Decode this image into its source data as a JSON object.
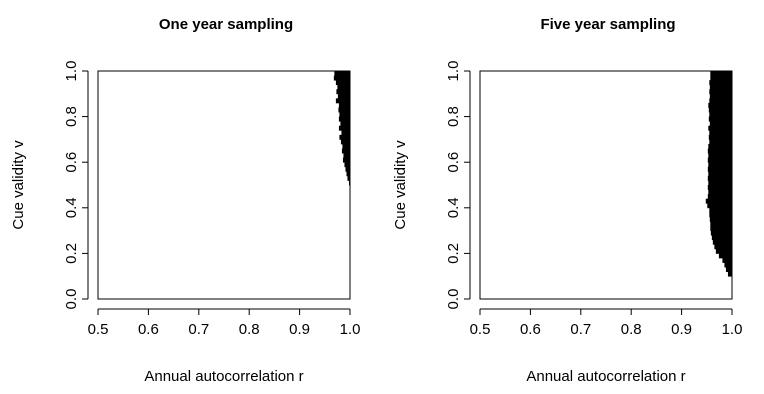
{
  "chart_data": [
    {
      "type": "area",
      "title": "One year sampling",
      "xlabel": "Annual autocorrelation r",
      "ylabel": "Cue validity v",
      "xlim": [
        0.5,
        1.0
      ],
      "ylim": [
        0.0,
        1.0
      ],
      "xticks": [
        "0.5",
        "0.6",
        "0.7",
        "0.8",
        "0.9",
        "1.0"
      ],
      "yticks": [
        "0.0",
        "0.2",
        "0.4",
        "0.6",
        "0.8",
        "1.0"
      ],
      "region_color": "#000000",
      "region_left_boundary": [
        {
          "v": 0.5,
          "r": 0.998
        },
        {
          "v": 0.52,
          "r": 0.995
        },
        {
          "v": 0.54,
          "r": 0.993
        },
        {
          "v": 0.56,
          "r": 0.991
        },
        {
          "v": 0.58,
          "r": 0.989
        },
        {
          "v": 0.6,
          "r": 0.986
        },
        {
          "v": 0.62,
          "r": 0.987
        },
        {
          "v": 0.64,
          "r": 0.984
        },
        {
          "v": 0.66,
          "r": 0.985
        },
        {
          "v": 0.68,
          "r": 0.982
        },
        {
          "v": 0.7,
          "r": 0.979
        },
        {
          "v": 0.72,
          "r": 0.983
        },
        {
          "v": 0.74,
          "r": 0.978
        },
        {
          "v": 0.76,
          "r": 0.981
        },
        {
          "v": 0.78,
          "r": 0.978
        },
        {
          "v": 0.8,
          "r": 0.979
        },
        {
          "v": 0.82,
          "r": 0.977
        },
        {
          "v": 0.84,
          "r": 0.978
        },
        {
          "v": 0.86,
          "r": 0.972
        },
        {
          "v": 0.88,
          "r": 0.976
        },
        {
          "v": 0.9,
          "r": 0.973
        },
        {
          "v": 0.92,
          "r": 0.975
        },
        {
          "v": 0.94,
          "r": 0.972
        },
        {
          "v": 0.96,
          "r": 0.968
        },
        {
          "v": 0.98,
          "r": 0.969
        }
      ]
    },
    {
      "type": "area",
      "title": "Five year sampling",
      "xlabel": "Annual autocorrelation r",
      "ylabel": "Cue validity v",
      "xlim": [
        0.5,
        1.0
      ],
      "ylim": [
        0.0,
        1.0
      ],
      "xticks": [
        "0.5",
        "0.6",
        "0.7",
        "0.8",
        "0.9",
        "1.0"
      ],
      "yticks": [
        "0.0",
        "0.2",
        "0.4",
        "0.6",
        "0.8",
        "1.0"
      ],
      "region_color": "#000000",
      "region_left_boundary": [
        {
          "v": 0.1,
          "r": 0.992
        },
        {
          "v": 0.12,
          "r": 0.988
        },
        {
          "v": 0.14,
          "r": 0.985
        },
        {
          "v": 0.16,
          "r": 0.981
        },
        {
          "v": 0.18,
          "r": 0.974
        },
        {
          "v": 0.2,
          "r": 0.968
        },
        {
          "v": 0.22,
          "r": 0.965
        },
        {
          "v": 0.24,
          "r": 0.962
        },
        {
          "v": 0.26,
          "r": 0.96
        },
        {
          "v": 0.28,
          "r": 0.958
        },
        {
          "v": 0.3,
          "r": 0.957
        },
        {
          "v": 0.32,
          "r": 0.957
        },
        {
          "v": 0.34,
          "r": 0.956
        },
        {
          "v": 0.36,
          "r": 0.955
        },
        {
          "v": 0.38,
          "r": 0.955
        },
        {
          "v": 0.4,
          "r": 0.951
        },
        {
          "v": 0.42,
          "r": 0.948
        },
        {
          "v": 0.44,
          "r": 0.952
        },
        {
          "v": 0.46,
          "r": 0.953
        },
        {
          "v": 0.48,
          "r": 0.952
        },
        {
          "v": 0.5,
          "r": 0.953
        },
        {
          "v": 0.52,
          "r": 0.952
        },
        {
          "v": 0.54,
          "r": 0.953
        },
        {
          "v": 0.56,
          "r": 0.952
        },
        {
          "v": 0.58,
          "r": 0.953
        },
        {
          "v": 0.6,
          "r": 0.952
        },
        {
          "v": 0.62,
          "r": 0.953
        },
        {
          "v": 0.64,
          "r": 0.952
        },
        {
          "v": 0.66,
          "r": 0.953
        },
        {
          "v": 0.68,
          "r": 0.955
        },
        {
          "v": 0.7,
          "r": 0.954
        },
        {
          "v": 0.72,
          "r": 0.955
        },
        {
          "v": 0.74,
          "r": 0.953
        },
        {
          "v": 0.76,
          "r": 0.956
        },
        {
          "v": 0.78,
          "r": 0.954
        },
        {
          "v": 0.8,
          "r": 0.955
        },
        {
          "v": 0.82,
          "r": 0.954
        },
        {
          "v": 0.84,
          "r": 0.953
        },
        {
          "v": 0.86,
          "r": 0.955
        },
        {
          "v": 0.88,
          "r": 0.956
        },
        {
          "v": 0.9,
          "r": 0.955
        },
        {
          "v": 0.92,
          "r": 0.956
        },
        {
          "v": 0.94,
          "r": 0.955
        },
        {
          "v": 0.96,
          "r": 0.957
        },
        {
          "v": 0.98,
          "r": 0.957
        }
      ]
    }
  ]
}
